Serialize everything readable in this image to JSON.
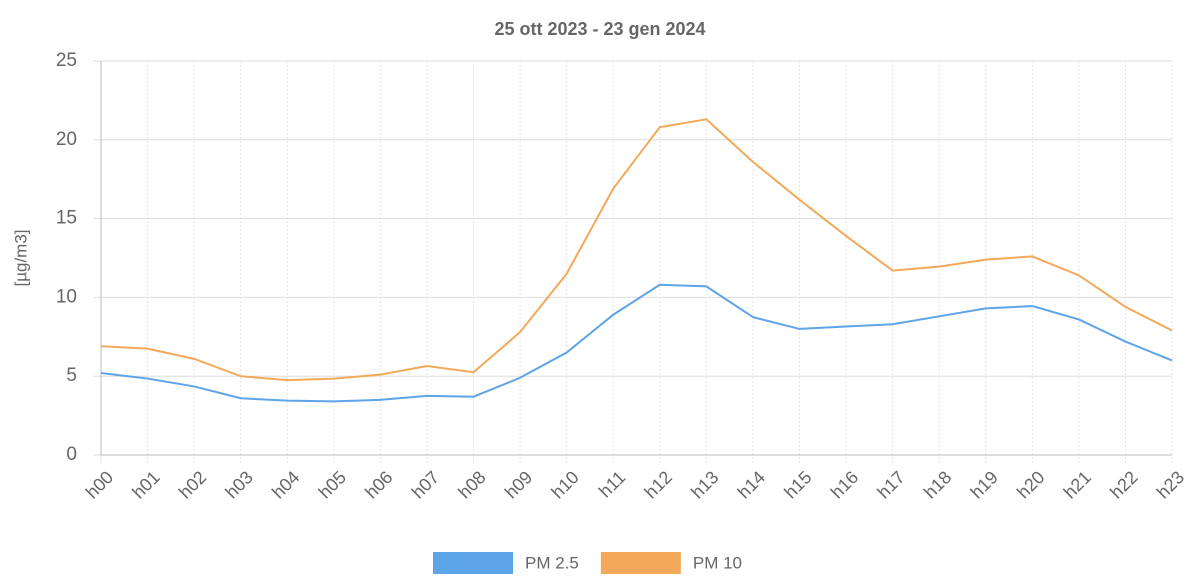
{
  "chart_data": {
    "type": "line",
    "title": "25 ott 2023 - 23 gen 2024",
    "y_label": "[µg/m3]",
    "categories": [
      "h00",
      "h01",
      "h02",
      "h03",
      "h04",
      "h05",
      "h06",
      "h07",
      "h08",
      "h09",
      "h10",
      "h11",
      "h12",
      "h13",
      "h14",
      "h15",
      "h16",
      "h17",
      "h18",
      "h19",
      "h20",
      "h21",
      "h22",
      "h23"
    ],
    "series": [
      {
        "name": "PM 2.5",
        "color": "#5ea4e8",
        "values": [
          5.2,
          4.85,
          4.35,
          3.6,
          3.45,
          3.4,
          3.5,
          3.75,
          3.7,
          4.9,
          6.5,
          8.9,
          10.8,
          10.7,
          8.75,
          8.0,
          8.15,
          8.3,
          8.8,
          9.3,
          9.45,
          8.6,
          7.2,
          6.0
        ]
      },
      {
        "name": "PM 10",
        "color": "#f2a95a",
        "values": [
          6.9,
          6.75,
          6.1,
          5.0,
          4.75,
          4.85,
          5.1,
          5.65,
          5.25,
          7.8,
          11.5,
          16.9,
          20.8,
          21.3,
          18.6,
          16.2,
          13.9,
          11.7,
          11.95,
          12.4,
          12.6,
          11.4,
          9.4,
          7.9
        ]
      }
    ],
    "ylim": [
      0,
      25
    ],
    "yticks": [
      0,
      5,
      10,
      15,
      20,
      25
    ],
    "grid": true,
    "legend": "bottom"
  }
}
